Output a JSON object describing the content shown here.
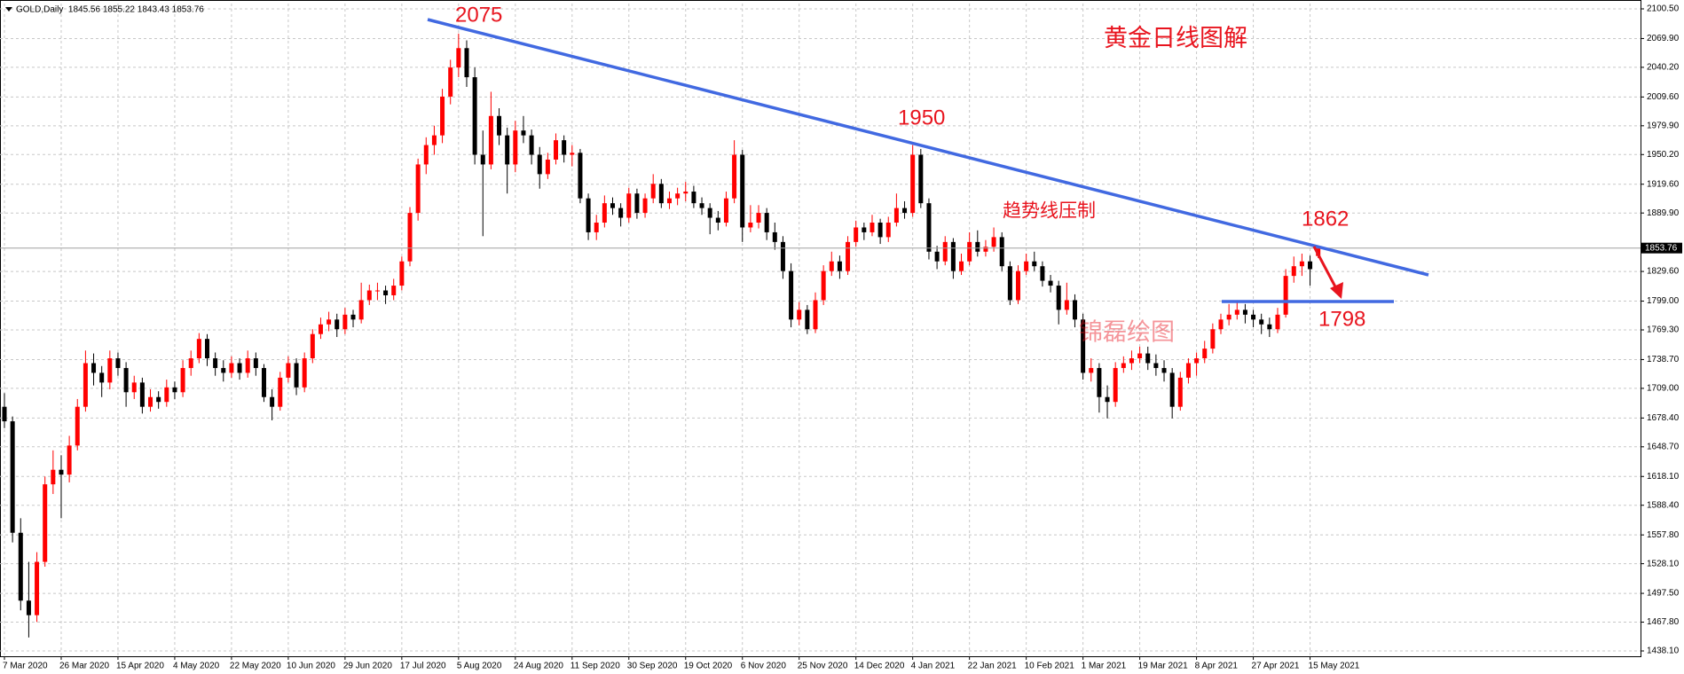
{
  "chart_data": {
    "type": "candlestick",
    "header": "GOLD,Daily  1845.56 1855.22 1843.43 1853.76",
    "title": "黄金日线图解",
    "trend_note": "趋势线压制",
    "watermark": "锦磊绘图",
    "price_labels": [
      2075,
      1950,
      1862,
      1798
    ],
    "last_price": 1853.76,
    "colors": {
      "up": "#ff0000",
      "down": "#000000",
      "trendline": "#4169e1",
      "arrow": "#e8141e"
    },
    "grid": true,
    "ylim": [
      1432.6,
      2106
    ],
    "yticks": [
      {
        "value": 2100.5,
        "label": "2100.50"
      },
      {
        "value": 2069.9,
        "label": "2069.90"
      },
      {
        "value": 2040.2,
        "label": "2040.20"
      },
      {
        "value": 2009.6,
        "label": "2009.60"
      },
      {
        "value": 1979.9,
        "label": "1979.90"
      },
      {
        "value": 1950.2,
        "label": "1950.20"
      },
      {
        "value": 1919.6,
        "label": "1919.60"
      },
      {
        "value": 1889.9,
        "label": "1889.90"
      },
      {
        "value": 1829.6,
        "label": "1829.60"
      },
      {
        "value": 1799,
        "label": "1799.00"
      },
      {
        "value": 1769.3,
        "label": "1769.30"
      },
      {
        "value": 1738.7,
        "label": "1738.70"
      },
      {
        "value": 1709,
        "label": "1709.00"
      },
      {
        "value": 1678.4,
        "label": "1678.40"
      },
      {
        "value": 1648.7,
        "label": "1648.70"
      },
      {
        "value": 1618.1,
        "label": "1618.10"
      },
      {
        "value": 1588.4,
        "label": "1588.40"
      },
      {
        "value": 1557.8,
        "label": "1557.80"
      },
      {
        "value": 1528.1,
        "label": "1528.10"
      },
      {
        "value": 1497.5,
        "label": "1497.50"
      },
      {
        "value": 1467.8,
        "label": "1467.80"
      },
      {
        "value": 1438.1,
        "label": "1438.10"
      }
    ],
    "xticks": [
      {
        "value": 0,
        "label": "7 Mar 2020"
      },
      {
        "value": 7,
        "label": "26 Mar 2020"
      },
      {
        "value": 14,
        "label": "15 Apr 2020"
      },
      {
        "value": 21,
        "label": "4 May 2020"
      },
      {
        "value": 28,
        "label": "22 May 2020"
      },
      {
        "value": 35,
        "label": "10 Jun 2020"
      },
      {
        "value": 42,
        "label": "29 Jun 2020"
      },
      {
        "value": 49,
        "label": "17 Jul 2020"
      },
      {
        "value": 56,
        "label": "5 Aug 2020"
      },
      {
        "value": 63,
        "label": "24 Aug 2020"
      },
      {
        "value": 70,
        "label": "11 Sep 2020"
      },
      {
        "value": 77,
        "label": "30 Sep 2020"
      },
      {
        "value": 84,
        "label": "19 Oct 2020"
      },
      {
        "value": 91,
        "label": "6 Nov 2020"
      },
      {
        "value": 98,
        "label": "25 Nov 2020"
      },
      {
        "value": 105,
        "label": "14 Dec 2020"
      },
      {
        "value": 112,
        "label": "4 Jan 2021"
      },
      {
        "value": 119,
        "label": "22 Jan 2021"
      },
      {
        "value": 126,
        "label": "10 Feb 2021"
      },
      {
        "value": 133,
        "label": "1 Mar 2021"
      },
      {
        "value": 140,
        "label": "19 Mar 2021"
      },
      {
        "value": 147,
        "label": "8 Apr 2021"
      },
      {
        "value": 154,
        "label": "27 Apr 2021"
      },
      {
        "value": 161,
        "label": "15 May 2021"
      }
    ],
    "ohlc": [
      [
        1690,
        1704,
        1668,
        1675
      ],
      [
        1675,
        1680,
        1550,
        1560
      ],
      [
        1560,
        1575,
        1480,
        1490
      ],
      [
        1490,
        1530,
        1452,
        1475
      ],
      [
        1475,
        1540,
        1468,
        1530
      ],
      [
        1530,
        1618,
        1525,
        1610
      ],
      [
        1610,
        1645,
        1600,
        1625
      ],
      [
        1625,
        1640,
        1575,
        1620
      ],
      [
        1620,
        1660,
        1612,
        1650
      ],
      [
        1650,
        1698,
        1645,
        1690
      ],
      [
        1690,
        1748,
        1685,
        1735
      ],
      [
        1735,
        1745,
        1712,
        1725
      ],
      [
        1725,
        1732,
        1700,
        1715
      ],
      [
        1715,
        1748,
        1708,
        1740
      ],
      [
        1740,
        1746,
        1722,
        1730
      ],
      [
        1730,
        1736,
        1690,
        1705
      ],
      [
        1705,
        1722,
        1698,
        1715
      ],
      [
        1715,
        1720,
        1683,
        1690
      ],
      [
        1690,
        1708,
        1685,
        1700
      ],
      [
        1700,
        1706,
        1688,
        1695
      ],
      [
        1695,
        1718,
        1690,
        1710
      ],
      [
        1710,
        1716,
        1698,
        1705
      ],
      [
        1705,
        1738,
        1700,
        1730
      ],
      [
        1730,
        1748,
        1722,
        1740
      ],
      [
        1740,
        1766,
        1735,
        1760
      ],
      [
        1760,
        1765,
        1732,
        1740
      ],
      [
        1740,
        1746,
        1722,
        1730
      ],
      [
        1730,
        1738,
        1716,
        1725
      ],
      [
        1725,
        1742,
        1720,
        1735
      ],
      [
        1735,
        1740,
        1718,
        1725
      ],
      [
        1725,
        1748,
        1720,
        1740
      ],
      [
        1740,
        1746,
        1722,
        1730
      ],
      [
        1730,
        1734,
        1695,
        1700
      ],
      [
        1700,
        1708,
        1676,
        1690
      ],
      [
        1690,
        1726,
        1686,
        1720
      ],
      [
        1720,
        1742,
        1715,
        1735
      ],
      [
        1735,
        1740,
        1702,
        1710
      ],
      [
        1710,
        1746,
        1705,
        1740
      ],
      [
        1740,
        1770,
        1735,
        1765
      ],
      [
        1765,
        1782,
        1760,
        1775
      ],
      [
        1775,
        1788,
        1768,
        1780
      ],
      [
        1780,
        1786,
        1762,
        1770
      ],
      [
        1770,
        1792,
        1765,
        1785
      ],
      [
        1785,
        1790,
        1772,
        1780
      ],
      [
        1780,
        1818,
        1776,
        1800
      ],
      [
        1800,
        1816,
        1795,
        1810
      ],
      [
        1810,
        1818,
        1800,
        1810
      ],
      [
        1810,
        1815,
        1796,
        1805
      ],
      [
        1805,
        1822,
        1800,
        1815
      ],
      [
        1815,
        1845,
        1810,
        1840
      ],
      [
        1840,
        1896,
        1835,
        1890
      ],
      [
        1890,
        1946,
        1882,
        1940
      ],
      [
        1940,
        1968,
        1930,
        1960
      ],
      [
        1960,
        1980,
        1950,
        1970
      ],
      [
        1970,
        2018,
        1962,
        2010
      ],
      [
        2010,
        2048,
        2002,
        2040
      ],
      [
        2040,
        2075,
        2030,
        2060
      ],
      [
        2060,
        2068,
        2020,
        2030
      ],
      [
        2030,
        2040,
        1940,
        1950
      ],
      [
        1950,
        1975,
        1866,
        1940
      ],
      [
        1940,
        2015,
        1935,
        1990
      ],
      [
        1990,
        1998,
        1960,
        1970
      ],
      [
        1970,
        1978,
        1910,
        1940
      ],
      [
        1940,
        1985,
        1932,
        1975
      ],
      [
        1975,
        1990,
        1962,
        1970
      ],
      [
        1970,
        1976,
        1940,
        1950
      ],
      [
        1950,
        1958,
        1915,
        1930
      ],
      [
        1930,
        1952,
        1925,
        1945
      ],
      [
        1945,
        1972,
        1940,
        1965
      ],
      [
        1965,
        1970,
        1942,
        1950
      ],
      [
        1950,
        1960,
        1938,
        1952
      ],
      [
        1952,
        1956,
        1900,
        1905
      ],
      [
        1905,
        1910,
        1862,
        1870
      ],
      [
        1870,
        1888,
        1862,
        1880
      ],
      [
        1880,
        1908,
        1875,
        1900
      ],
      [
        1900,
        1906,
        1888,
        1895
      ],
      [
        1895,
        1900,
        1876,
        1885
      ],
      [
        1885,
        1916,
        1880,
        1910
      ],
      [
        1910,
        1915,
        1884,
        1890
      ],
      [
        1890,
        1910,
        1885,
        1905
      ],
      [
        1905,
        1930,
        1900,
        1920
      ],
      [
        1920,
        1925,
        1895,
        1900
      ],
      [
        1900,
        1912,
        1894,
        1905
      ],
      [
        1905,
        1916,
        1898,
        1910
      ],
      [
        1910,
        1922,
        1902,
        1912
      ],
      [
        1912,
        1918,
        1895,
        1900
      ],
      [
        1900,
        1906,
        1888,
        1895
      ],
      [
        1895,
        1900,
        1868,
        1885
      ],
      [
        1885,
        1892,
        1872,
        1880
      ],
      [
        1880,
        1912,
        1876,
        1905
      ],
      [
        1905,
        1965,
        1900,
        1950
      ],
      [
        1950,
        1955,
        1860,
        1875
      ],
      [
        1875,
        1898,
        1870,
        1880
      ],
      [
        1880,
        1898,
        1874,
        1890
      ],
      [
        1890,
        1895,
        1862,
        1870
      ],
      [
        1870,
        1880,
        1852,
        1860
      ],
      [
        1860,
        1866,
        1822,
        1830
      ],
      [
        1830,
        1838,
        1772,
        1780
      ],
      [
        1780,
        1798,
        1774,
        1790
      ],
      [
        1790,
        1795,
        1765,
        1770
      ],
      [
        1770,
        1808,
        1766,
        1800
      ],
      [
        1800,
        1836,
        1795,
        1830
      ],
      [
        1830,
        1850,
        1825,
        1840
      ],
      [
        1840,
        1846,
        1822,
        1830
      ],
      [
        1830,
        1866,
        1826,
        1860
      ],
      [
        1860,
        1882,
        1855,
        1875
      ],
      [
        1875,
        1880,
        1862,
        1870
      ],
      [
        1870,
        1888,
        1866,
        1880
      ],
      [
        1880,
        1884,
        1858,
        1865
      ],
      [
        1865,
        1886,
        1860,
        1880
      ],
      [
        1880,
        1910,
        1876,
        1895
      ],
      [
        1895,
        1902,
        1884,
        1890
      ],
      [
        1890,
        1960,
        1886,
        1950
      ],
      [
        1950,
        1956,
        1895,
        1900
      ],
      [
        1900,
        1905,
        1842,
        1850
      ],
      [
        1850,
        1856,
        1832,
        1840
      ],
      [
        1840,
        1866,
        1836,
        1860
      ],
      [
        1860,
        1864,
        1822,
        1830
      ],
      [
        1830,
        1848,
        1826,
        1840
      ],
      [
        1840,
        1870,
        1836,
        1860
      ],
      [
        1860,
        1872,
        1845,
        1850
      ],
      [
        1850,
        1862,
        1845,
        1855
      ],
      [
        1855,
        1875,
        1850,
        1865
      ],
      [
        1865,
        1870,
        1830,
        1835
      ],
      [
        1835,
        1840,
        1795,
        1800
      ],
      [
        1800,
        1836,
        1796,
        1830
      ],
      [
        1830,
        1848,
        1826,
        1840
      ],
      [
        1840,
        1850,
        1830,
        1835
      ],
      [
        1835,
        1840,
        1814,
        1820
      ],
      [
        1820,
        1826,
        1808,
        1815
      ],
      [
        1815,
        1820,
        1775,
        1790
      ],
      [
        1790,
        1818,
        1785,
        1800
      ],
      [
        1800,
        1806,
        1772,
        1780
      ],
      [
        1780,
        1786,
        1718,
        1725
      ],
      [
        1725,
        1740,
        1716,
        1730
      ],
      [
        1730,
        1735,
        1684,
        1700
      ],
      [
        1700,
        1712,
        1678,
        1695
      ],
      [
        1695,
        1736,
        1690,
        1730
      ],
      [
        1730,
        1742,
        1725,
        1735
      ],
      [
        1735,
        1748,
        1728,
        1740
      ],
      [
        1740,
        1752,
        1735,
        1745
      ],
      [
        1745,
        1752,
        1728,
        1735
      ],
      [
        1735,
        1744,
        1722,
        1730
      ],
      [
        1730,
        1738,
        1716,
        1725
      ],
      [
        1725,
        1730,
        1678,
        1690
      ],
      [
        1690,
        1726,
        1686,
        1720
      ],
      [
        1720,
        1740,
        1714,
        1735
      ],
      [
        1735,
        1746,
        1722,
        1740
      ],
      [
        1740,
        1758,
        1735,
        1750
      ],
      [
        1750,
        1776,
        1745,
        1770
      ],
      [
        1770,
        1786,
        1765,
        1780
      ],
      [
        1780,
        1796,
        1774,
        1785
      ],
      [
        1785,
        1800,
        1780,
        1790
      ],
      [
        1790,
        1796,
        1776,
        1785
      ],
      [
        1785,
        1790,
        1772,
        1780
      ],
      [
        1780,
        1786,
        1765,
        1775
      ],
      [
        1775,
        1782,
        1762,
        1770
      ],
      [
        1770,
        1792,
        1766,
        1785
      ],
      [
        1785,
        1832,
        1782,
        1825
      ],
      [
        1825,
        1845,
        1818,
        1835
      ],
      [
        1835,
        1848,
        1825,
        1840
      ],
      [
        1840,
        1846,
        1815,
        1832
      ],
      [
        1845.56,
        1855.22,
        1843.43,
        1853.76
      ]
    ]
  }
}
